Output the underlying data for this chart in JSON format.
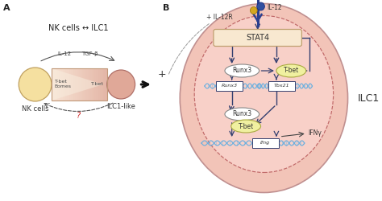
{
  "panel_A_title": "A",
  "panel_B_title": "B",
  "nk_ilc1_text": "NK cells ↔ ILC1",
  "il12_text": "IL-12",
  "tgfb_text": "TGF-β",
  "nk_cells_text": "NK cells",
  "ilc1like_text": "ILC1-like",
  "tbet_eomes_text": "T-bet\nEomes",
  "tbet_right_text": "T-bet",
  "question_text": "?",
  "ilc1_label": "ILC1",
  "il12_label": "IL-12",
  "il12r_text": "+ IL-12R",
  "stat4_text": "STAT4",
  "runx3_top_text": "Runx3",
  "runx3_gene_text": "Runx3",
  "tbet_oval_text": "T-bet",
  "tbx21_gene_text": "Tbx21",
  "runx3_bottom_text": "Runx3",
  "tbet_bottom_text": "T-bet",
  "ifng_text": "IFNγ",
  "ifng_gene_text": "Ifng",
  "bg_color": "#ffffff",
  "cell_outer_pink": "#f2c4b8",
  "cell_inner_pink": "#f5d0c8",
  "nk_cell_color": "#f5e0a0",
  "ilc1like_color": "#e0a898",
  "stat4_box_color": "#f8e8d0",
  "runx3_oval_color": "#e8e8e8",
  "tbet_oval_color": "#f0f0a0",
  "dna_color": "#6ab0e0",
  "dark_navy": "#354070",
  "receptor_color": "#2a4090",
  "il12_ligand_yellow": "#d4a820",
  "il12_ligand_blue": "#3050a0"
}
